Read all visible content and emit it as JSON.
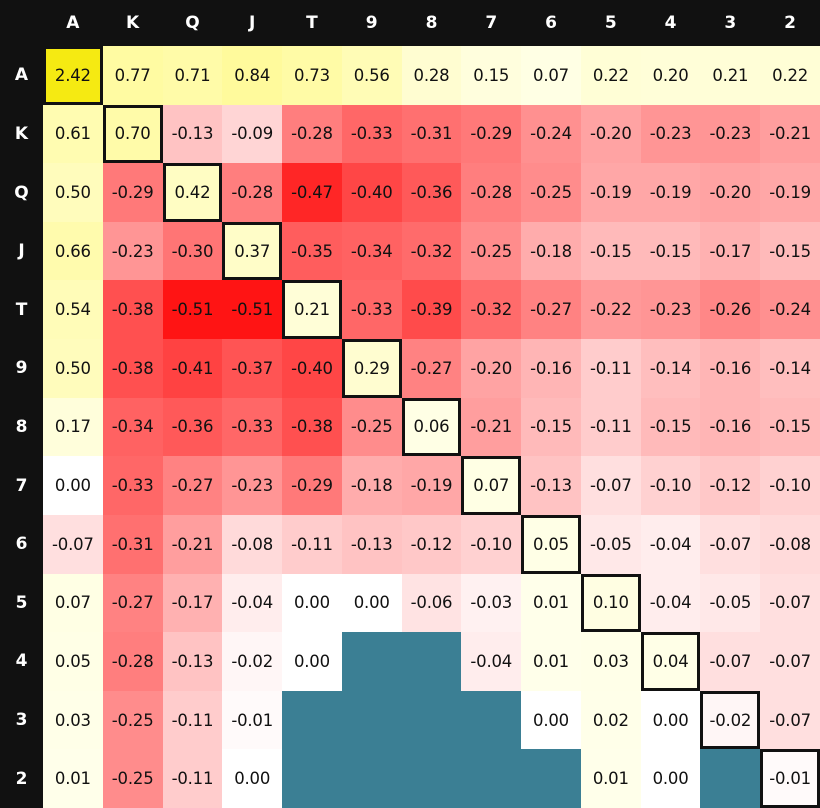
{
  "chart_data": {
    "type": "heatmap",
    "ranks": [
      "A",
      "K",
      "Q",
      "J",
      "T",
      "9",
      "8",
      "7",
      "6",
      "5",
      "4",
      "3",
      "2"
    ],
    "values": [
      [
        "2.42",
        "0.77",
        "0.71",
        "0.84",
        "0.73",
        "0.56",
        "0.28",
        "0.15",
        "0.07",
        "0.22",
        "0.20",
        "0.21",
        "0.22"
      ],
      [
        "0.61",
        "0.70",
        "-0.13",
        "-0.09",
        "-0.28",
        "-0.33",
        "-0.31",
        "-0.29",
        "-0.24",
        "-0.20",
        "-0.23",
        "-0.23",
        "-0.21"
      ],
      [
        "0.50",
        "-0.29",
        "0.42",
        "-0.28",
        "-0.47",
        "-0.40",
        "-0.36",
        "-0.28",
        "-0.25",
        "-0.19",
        "-0.19",
        "-0.20",
        "-0.19"
      ],
      [
        "0.66",
        "-0.23",
        "-0.30",
        "0.37",
        "-0.35",
        "-0.34",
        "-0.32",
        "-0.25",
        "-0.18",
        "-0.15",
        "-0.15",
        "-0.17",
        "-0.15"
      ],
      [
        "0.54",
        "-0.38",
        "-0.51",
        "-0.51",
        "0.21",
        "-0.33",
        "-0.39",
        "-0.32",
        "-0.27",
        "-0.22",
        "-0.23",
        "-0.26",
        "-0.24"
      ],
      [
        "0.50",
        "-0.38",
        "-0.41",
        "-0.37",
        "-0.40",
        "0.29",
        "-0.27",
        "-0.20",
        "-0.16",
        "-0.11",
        "-0.14",
        "-0.16",
        "-0.14"
      ],
      [
        "0.17",
        "-0.34",
        "-0.36",
        "-0.33",
        "-0.38",
        "-0.25",
        "0.06",
        "-0.21",
        "-0.15",
        "-0.11",
        "-0.15",
        "-0.16",
        "-0.15"
      ],
      [
        "0.00",
        "-0.33",
        "-0.27",
        "-0.23",
        "-0.29",
        "-0.18",
        "-0.19",
        "0.07",
        "-0.13",
        "-0.07",
        "-0.10",
        "-0.12",
        "-0.10"
      ],
      [
        "-0.07",
        "-0.31",
        "-0.21",
        "-0.08",
        "-0.11",
        "-0.13",
        "-0.12",
        "-0.10",
        "0.05",
        "-0.05",
        "-0.04",
        "-0.07",
        "-0.08"
      ],
      [
        "0.07",
        "-0.27",
        "-0.17",
        "-0.04",
        "0.00",
        "0.00",
        "-0.06",
        "-0.03",
        "0.01",
        "0.10",
        "-0.04",
        "-0.05",
        "-0.07"
      ],
      [
        "0.05",
        "-0.28",
        "-0.13",
        "-0.02",
        "0.00",
        null,
        null,
        "-0.04",
        "0.01",
        "0.03",
        "0.04",
        "-0.07",
        "-0.07"
      ],
      [
        "0.03",
        "-0.25",
        "-0.11",
        "-0.01",
        null,
        null,
        null,
        null,
        "0.00",
        "0.02",
        "0.00",
        "-0.02",
        "-0.07"
      ],
      [
        "0.01",
        "-0.25",
        "-0.11",
        "0.00",
        null,
        null,
        null,
        null,
        null,
        "0.01",
        "0.00",
        null,
        "-0.01"
      ]
    ],
    "colors": {
      "empty": "#3b7f94",
      "max": "#f5ea12",
      "header_bg": "#111111",
      "header_text": "#ffffff"
    }
  }
}
